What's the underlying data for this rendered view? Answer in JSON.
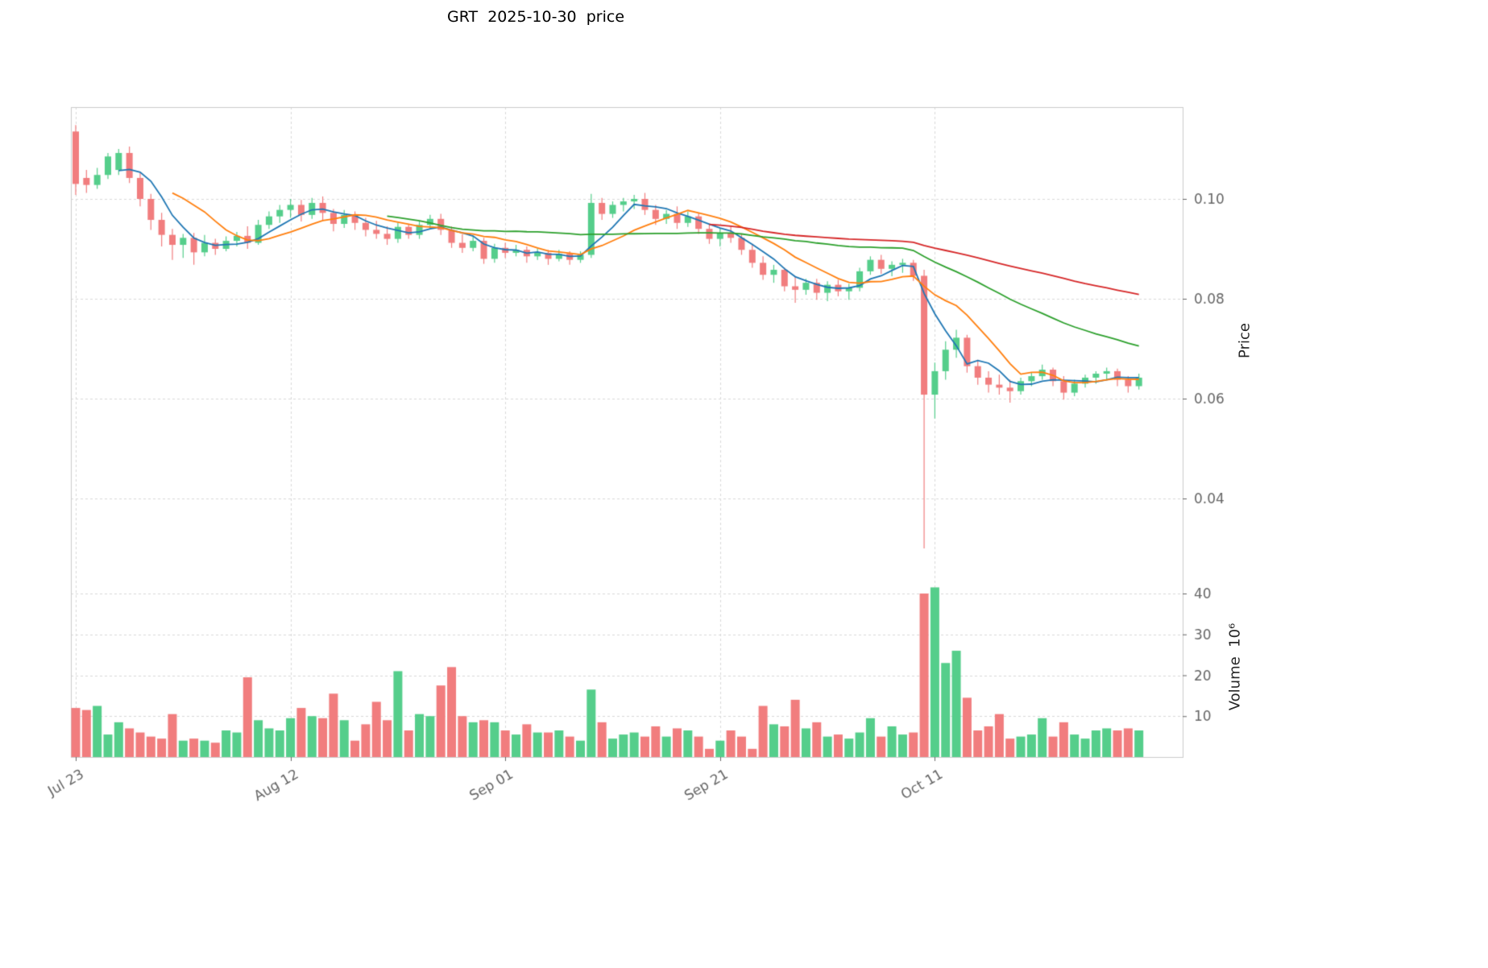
{
  "title": "GRT  2025-10-30  price",
  "chart_data": {
    "type": "candlestick",
    "title": "GRT  2025-10-30  price",
    "price_axis_label": "Price",
    "volume_axis_label": "Volume  10⁶",
    "grid": true,
    "legend_position": "none",
    "x_ticks": [
      {
        "index": 0,
        "label": "Jul 23"
      },
      {
        "index": 20,
        "label": "Aug 12"
      },
      {
        "index": 40,
        "label": "Sep 01"
      },
      {
        "index": 60,
        "label": "Sep 21"
      },
      {
        "index": 80,
        "label": "Oct 11"
      }
    ],
    "price_ticks": [
      0.1,
      0.08,
      0.06,
      0.04
    ],
    "price_ylim": [
      0.028,
      0.1185
    ],
    "volume_ticks": [
      10,
      20,
      30,
      40
    ],
    "volume_unit": "10^6",
    "up_color": "#55CE8B",
    "down_color": "#F17D7E",
    "grid_color": "#d9d9d9",
    "spine_color": "#cccccc",
    "tick_label_color": "#666666",
    "mav": {
      "windows": [
        5,
        10,
        30,
        60
      ],
      "colors": [
        "#1f77b4",
        "#ff7f0e",
        "#2ca02c",
        "#d62728"
      ]
    },
    "ohlcv_columns": [
      "open",
      "high",
      "low",
      "close",
      "volume_millions"
    ],
    "ohlcv": [
      [
        0.1135,
        0.1148,
        0.1008,
        0.103,
        12.0
      ],
      [
        0.1042,
        0.1058,
        0.1012,
        0.1028,
        11.5
      ],
      [
        0.1028,
        0.1062,
        0.102,
        0.1048,
        12.5
      ],
      [
        0.1048,
        0.1092,
        0.104,
        0.1085,
        5.5
      ],
      [
        0.1058,
        0.11,
        0.1048,
        0.1092,
        8.5
      ],
      [
        0.1092,
        0.1105,
        0.1032,
        0.1042,
        7.0
      ],
      [
        0.1042,
        0.1052,
        0.0985,
        0.1,
        6.0
      ],
      [
        0.1,
        0.101,
        0.0938,
        0.0958,
        5.0
      ],
      [
        0.0958,
        0.0972,
        0.0905,
        0.0928,
        4.5
      ],
      [
        0.0928,
        0.094,
        0.0878,
        0.0908,
        10.5
      ],
      [
        0.0908,
        0.093,
        0.0882,
        0.0922,
        4.0
      ],
      [
        0.0922,
        0.0932,
        0.0868,
        0.0893,
        4.5
      ],
      [
        0.0893,
        0.0928,
        0.0885,
        0.0912,
        4.0
      ],
      [
        0.0912,
        0.092,
        0.0888,
        0.09,
        3.5
      ],
      [
        0.09,
        0.0925,
        0.0895,
        0.0916,
        6.5
      ],
      [
        0.0916,
        0.0934,
        0.0905,
        0.0926,
        6.0
      ],
      [
        0.0926,
        0.0945,
        0.09,
        0.0912,
        19.5
      ],
      [
        0.0912,
        0.0958,
        0.0908,
        0.0948,
        9.0
      ],
      [
        0.0948,
        0.0975,
        0.094,
        0.0965,
        7.0
      ],
      [
        0.0965,
        0.0988,
        0.0952,
        0.0978,
        6.5
      ],
      [
        0.0978,
        0.1,
        0.0962,
        0.0988,
        9.5
      ],
      [
        0.0988,
        0.0998,
        0.0955,
        0.0968,
        12.0
      ],
      [
        0.0968,
        0.1002,
        0.096,
        0.0992,
        10.0
      ],
      [
        0.0992,
        0.1005,
        0.0958,
        0.0972,
        9.5
      ],
      [
        0.0972,
        0.098,
        0.0935,
        0.095,
        15.5
      ],
      [
        0.095,
        0.0978,
        0.0942,
        0.0968,
        9.0
      ],
      [
        0.0968,
        0.0975,
        0.0938,
        0.0952,
        4.0
      ],
      [
        0.0952,
        0.0962,
        0.0925,
        0.0938,
        8.0
      ],
      [
        0.0938,
        0.0956,
        0.092,
        0.093,
        13.5
      ],
      [
        0.093,
        0.0945,
        0.0908,
        0.092,
        9.0
      ],
      [
        0.092,
        0.0952,
        0.0912,
        0.0944,
        21.0
      ],
      [
        0.0944,
        0.095,
        0.092,
        0.0928,
        6.5
      ],
      [
        0.0928,
        0.0955,
        0.092,
        0.0948,
        10.5
      ],
      [
        0.0948,
        0.0968,
        0.094,
        0.096,
        10.0
      ],
      [
        0.096,
        0.097,
        0.0928,
        0.0938,
        17.5
      ],
      [
        0.0938,
        0.0945,
        0.0902,
        0.0912,
        22.0
      ],
      [
        0.0912,
        0.093,
        0.0892,
        0.0902,
        10.0
      ],
      [
        0.0902,
        0.0926,
        0.0895,
        0.0916,
        8.5
      ],
      [
        0.0916,
        0.0922,
        0.087,
        0.088,
        9.0
      ],
      [
        0.088,
        0.091,
        0.0872,
        0.0902,
        8.5
      ],
      [
        0.0902,
        0.0912,
        0.0882,
        0.0892,
        6.5
      ],
      [
        0.0892,
        0.0908,
        0.0885,
        0.0898,
        5.5
      ],
      [
        0.0898,
        0.0905,
        0.0872,
        0.0885,
        8.0
      ],
      [
        0.0885,
        0.09,
        0.0878,
        0.0892,
        6.0
      ],
      [
        0.0892,
        0.0898,
        0.0868,
        0.088,
        6.0
      ],
      [
        0.088,
        0.0898,
        0.0875,
        0.089,
        6.5
      ],
      [
        0.089,
        0.0895,
        0.0868,
        0.0878,
        5.0
      ],
      [
        0.0878,
        0.0895,
        0.0872,
        0.0888,
        4.0
      ],
      [
        0.0888,
        0.101,
        0.0882,
        0.0992,
        16.5
      ],
      [
        0.0992,
        0.1002,
        0.0958,
        0.097,
        8.5
      ],
      [
        0.097,
        0.0995,
        0.0962,
        0.0988,
        4.5
      ],
      [
        0.0988,
        0.1002,
        0.0975,
        0.0995,
        5.5
      ],
      [
        0.0995,
        0.1008,
        0.098,
        0.1,
        6.0
      ],
      [
        0.1,
        0.1012,
        0.0968,
        0.0978,
        5.0
      ],
      [
        0.0978,
        0.0988,
        0.0948,
        0.096,
        7.5
      ],
      [
        0.096,
        0.0978,
        0.095,
        0.097,
        5.0
      ],
      [
        0.097,
        0.0985,
        0.094,
        0.0952,
        7.0
      ],
      [
        0.0952,
        0.0975,
        0.0944,
        0.0965,
        6.5
      ],
      [
        0.0965,
        0.0972,
        0.093,
        0.094,
        5.0
      ],
      [
        0.094,
        0.095,
        0.091,
        0.092,
        2.0
      ],
      [
        0.092,
        0.0942,
        0.0905,
        0.0932,
        4.0
      ],
      [
        0.0932,
        0.0945,
        0.0912,
        0.0922,
        6.5
      ],
      [
        0.0922,
        0.093,
        0.0888,
        0.0898,
        5.0
      ],
      [
        0.0898,
        0.091,
        0.0862,
        0.0872,
        2.0
      ],
      [
        0.0872,
        0.0885,
        0.0838,
        0.0848,
        12.5
      ],
      [
        0.0848,
        0.0868,
        0.0832,
        0.0858,
        8.0
      ],
      [
        0.0858,
        0.0862,
        0.0815,
        0.0825,
        7.5
      ],
      [
        0.0825,
        0.0845,
        0.0792,
        0.0818,
        14.0
      ],
      [
        0.0818,
        0.084,
        0.0808,
        0.0832,
        7.0
      ],
      [
        0.0832,
        0.084,
        0.0798,
        0.0812,
        8.5
      ],
      [
        0.0812,
        0.0835,
        0.0795,
        0.0828,
        5.0
      ],
      [
        0.0828,
        0.0838,
        0.0805,
        0.0815,
        5.5
      ],
      [
        0.0815,
        0.083,
        0.0798,
        0.0822,
        4.5
      ],
      [
        0.0822,
        0.0862,
        0.0815,
        0.0855,
        6.0
      ],
      [
        0.0855,
        0.0885,
        0.0848,
        0.0878,
        9.5
      ],
      [
        0.0878,
        0.0888,
        0.085,
        0.086,
        5.0
      ],
      [
        0.086,
        0.0875,
        0.0845,
        0.0868,
        7.5
      ],
      [
        0.0868,
        0.088,
        0.0852,
        0.0872,
        5.5
      ],
      [
        0.0872,
        0.0878,
        0.0836,
        0.0846,
        6.0
      ],
      [
        0.0846,
        0.0858,
        0.03,
        0.0608,
        40.0
      ],
      [
        0.0608,
        0.0672,
        0.056,
        0.0655,
        41.5
      ],
      [
        0.0655,
        0.0715,
        0.0638,
        0.0698,
        23.0
      ],
      [
        0.0698,
        0.0738,
        0.0682,
        0.0722,
        26.0
      ],
      [
        0.0722,
        0.0728,
        0.0652,
        0.0665,
        14.5
      ],
      [
        0.0665,
        0.0678,
        0.0628,
        0.0642,
        6.5
      ],
      [
        0.0642,
        0.0655,
        0.0612,
        0.0628,
        7.5
      ],
      [
        0.0628,
        0.0648,
        0.0608,
        0.0622,
        10.5
      ],
      [
        0.0622,
        0.0638,
        0.0592,
        0.0615,
        4.5
      ],
      [
        0.0615,
        0.0642,
        0.0608,
        0.0635,
        5.0
      ],
      [
        0.0635,
        0.0652,
        0.0625,
        0.0645,
        5.5
      ],
      [
        0.0645,
        0.0668,
        0.0638,
        0.0658,
        9.5
      ],
      [
        0.0658,
        0.0662,
        0.0625,
        0.0635,
        5.0
      ],
      [
        0.0635,
        0.0645,
        0.0598,
        0.0612,
        8.5
      ],
      [
        0.0612,
        0.0638,
        0.0605,
        0.063,
        5.5
      ],
      [
        0.063,
        0.0648,
        0.0622,
        0.0642,
        4.5
      ],
      [
        0.0642,
        0.0655,
        0.063,
        0.065,
        6.5
      ],
      [
        0.065,
        0.0662,
        0.0638,
        0.0655,
        7.0
      ],
      [
        0.0655,
        0.066,
        0.0625,
        0.0638,
        6.5
      ],
      [
        0.0638,
        0.0645,
        0.0612,
        0.0625,
        7.0
      ],
      [
        0.0625,
        0.065,
        0.0618,
        0.0642,
        6.5
      ]
    ]
  }
}
